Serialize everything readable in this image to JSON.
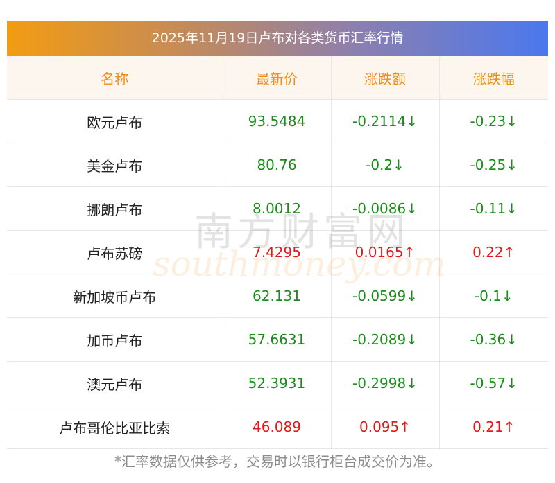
{
  "title": "2025年11月19日卢布对各类货币汇率行情",
  "columns": [
    "名称",
    "最新价",
    "涨跌额",
    "涨跌幅"
  ],
  "rows": [
    {
      "name": "欧元卢布",
      "price": "93.5484",
      "change": "-0.2114↓",
      "pct": "-0.23↓",
      "dir": "down"
    },
    {
      "name": "美金卢布",
      "price": "80.76",
      "change": "-0.2↓",
      "pct": "-0.25↓",
      "dir": "down"
    },
    {
      "name": "挪朗卢布",
      "price": "8.0012",
      "change": "-0.0086↓",
      "pct": "-0.11↓",
      "dir": "down"
    },
    {
      "name": "卢布苏磅",
      "price": "7.4295",
      "change": "0.0165↑",
      "pct": "0.22↑",
      "dir": "up"
    },
    {
      "name": "新加坡币卢布",
      "price": "62.131",
      "change": "-0.0599↓",
      "pct": "-0.1↓",
      "dir": "down"
    },
    {
      "name": "加币卢布",
      "price": "57.6631",
      "change": "-0.2089↓",
      "pct": "-0.36↓",
      "dir": "down"
    },
    {
      "name": "澳元卢布",
      "price": "52.3931",
      "change": "-0.2998↓",
      "pct": "-0.57↓",
      "dir": "down"
    },
    {
      "name": "卢布哥伦比亚比索",
      "price": "46.089",
      "change": "0.095↑",
      "pct": "0.21↑",
      "dir": "up"
    }
  ],
  "footnote": "*汇率数据仅供参考，交易时以银行柜台成交价为准。",
  "watermark": {
    "cn": "南方财富网",
    "en": "southmoney.com"
  },
  "colors": {
    "up": "#e61919",
    "down": "#1e8a1e",
    "header_text": "#f08c1a"
  }
}
